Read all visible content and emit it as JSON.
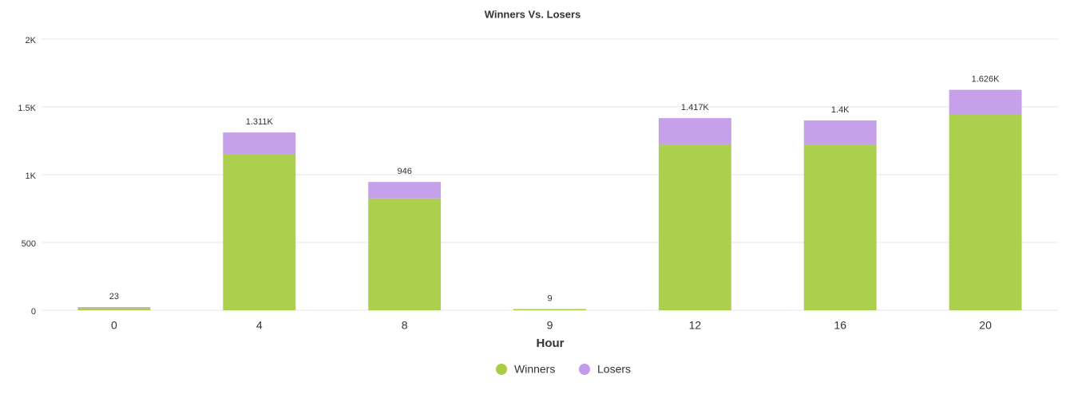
{
  "chart_data": {
    "type": "stacked_bar",
    "title": "Winners Vs. Losers",
    "x_label": "Hour",
    "categories": [
      "0",
      "4",
      "8",
      "9",
      "12",
      "16",
      "20"
    ],
    "series": [
      {
        "name": "Winners",
        "color": "#a9cc45",
        "values": [
          15,
          1150,
          825,
          6,
          1218,
          1224,
          1441
        ]
      },
      {
        "name": "Losers",
        "color": "#c39be8",
        "values": [
          8,
          161,
          121,
          3,
          199,
          176,
          185
        ]
      }
    ],
    "totals": [
      23,
      1311,
      946,
      9,
      1417,
      1400,
      1626
    ],
    "total_labels": [
      "23",
      "1.311K",
      "946",
      "9",
      "1.417K",
      "1.4K",
      "1.626K"
    ],
    "ylim": [
      0,
      2000
    ],
    "yticks": [
      0,
      500,
      {
        "value": 1000,
        "label": "1K"
      },
      {
        "value": 1500,
        "label": "1.5K"
      },
      {
        "value": 2000,
        "label": "2K"
      }
    ],
    "grid": true,
    "legend": "bottom"
  }
}
